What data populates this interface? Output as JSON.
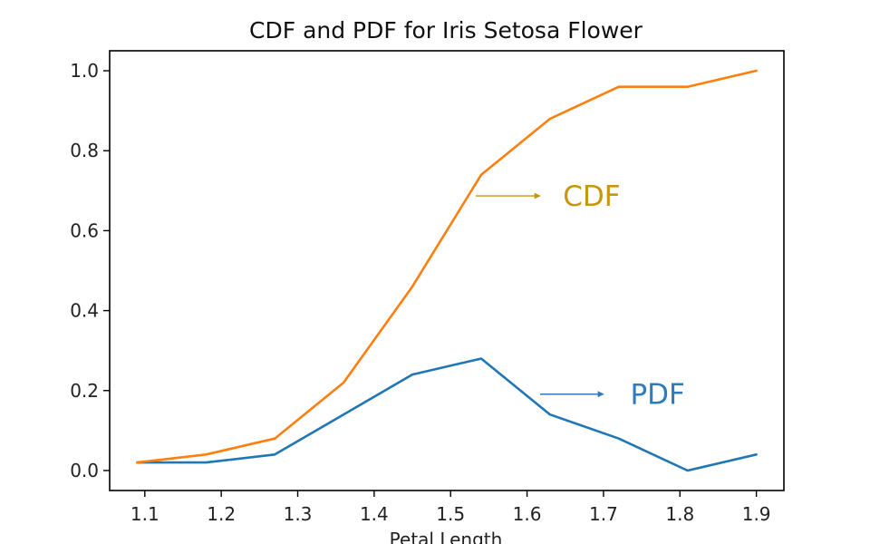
{
  "chart_data": {
    "type": "line",
    "title": "CDF and PDF for Iris Setosa Flower",
    "xlabel": "Petal Length",
    "ylabel": "",
    "xlim": [
      1.054,
      1.936
    ],
    "ylim": [
      -0.05,
      1.05
    ],
    "xticks": [
      "1.1",
      "1.2",
      "1.3",
      "1.4",
      "1.5",
      "1.6",
      "1.7",
      "1.8",
      "1.9"
    ],
    "yticks": [
      "0.0",
      "0.2",
      "0.4",
      "0.6",
      "0.8",
      "1.0"
    ],
    "grid": false,
    "x": [
      1.09,
      1.18,
      1.27,
      1.36,
      1.45,
      1.54,
      1.63,
      1.72,
      1.81,
      1.9
    ],
    "series": [
      {
        "color": "#1f77b4",
        "values": [
          0.02,
          0.02,
          0.04,
          0.14,
          0.24,
          0.28,
          0.14,
          0.08,
          0.0,
          0.04
        ]
      },
      {
        "color": "#ff7f0e",
        "values": [
          0.02,
          0.04,
          0.08,
          0.22,
          0.46,
          0.74,
          0.88,
          0.96,
          0.96,
          1.0
        ]
      }
    ],
    "annotations": [
      {
        "text": "CDF",
        "color": "#c8960c",
        "arrow_from": [
          1.533,
          0.687
        ],
        "arrow_to": [
          1.617,
          0.687
        ],
        "text_at": [
          1.647,
          0.687
        ]
      },
      {
        "text": "PDF",
        "color": "#2e7bbd",
        "arrow_from": [
          1.617,
          0.191
        ],
        "arrow_to": [
          1.7,
          0.191
        ],
        "text_at": [
          1.735,
          0.191
        ]
      }
    ]
  }
}
